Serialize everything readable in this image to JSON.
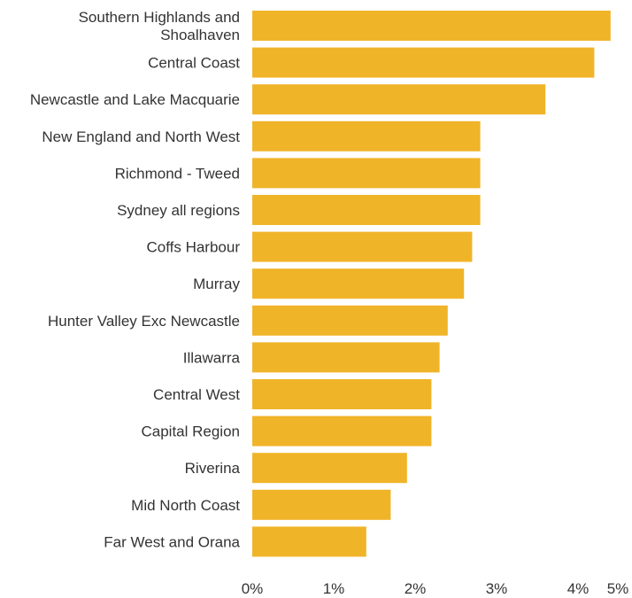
{
  "colors": {
    "bar": "#F0B429",
    "text": "#333333",
    "background": "#FFFFFF"
  },
  "chart_data": {
    "type": "bar",
    "orientation": "horizontal",
    "title": "",
    "xlabel": "",
    "ylabel": "",
    "xlim": [
      0,
      5
    ],
    "grid": false,
    "categories": [
      [
        "Southern Highlands and",
        "Shoalhaven"
      ],
      [
        "Central Coast"
      ],
      [
        "Newcastle and Lake Macquarie"
      ],
      [
        "New England and North West"
      ],
      [
        "Richmond - Tweed"
      ],
      [
        "Sydney all regions"
      ],
      [
        "Coffs Harbour"
      ],
      [
        "Murray"
      ],
      [
        "Hunter Valley Exc Newcastle"
      ],
      [
        "Illawarra"
      ],
      [
        "Central West"
      ],
      [
        "Capital Region"
      ],
      [
        "Riverina"
      ],
      [
        "Mid North Coast"
      ],
      [
        "Far West and Orana"
      ]
    ],
    "values": [
      4.4,
      4.2,
      3.6,
      2.8,
      2.8,
      2.8,
      2.7,
      2.6,
      2.4,
      2.3,
      2.2,
      2.2,
      1.9,
      1.7,
      1.4
    ],
    "x_ticks": [
      {
        "value": 0,
        "label": "0%"
      },
      {
        "value": 1,
        "label": "1%"
      },
      {
        "value": 2,
        "label": "2%"
      },
      {
        "value": 3,
        "label": "3%"
      },
      {
        "value": 4,
        "label": "4%"
      },
      {
        "value": 5,
        "label": "5%"
      }
    ]
  }
}
